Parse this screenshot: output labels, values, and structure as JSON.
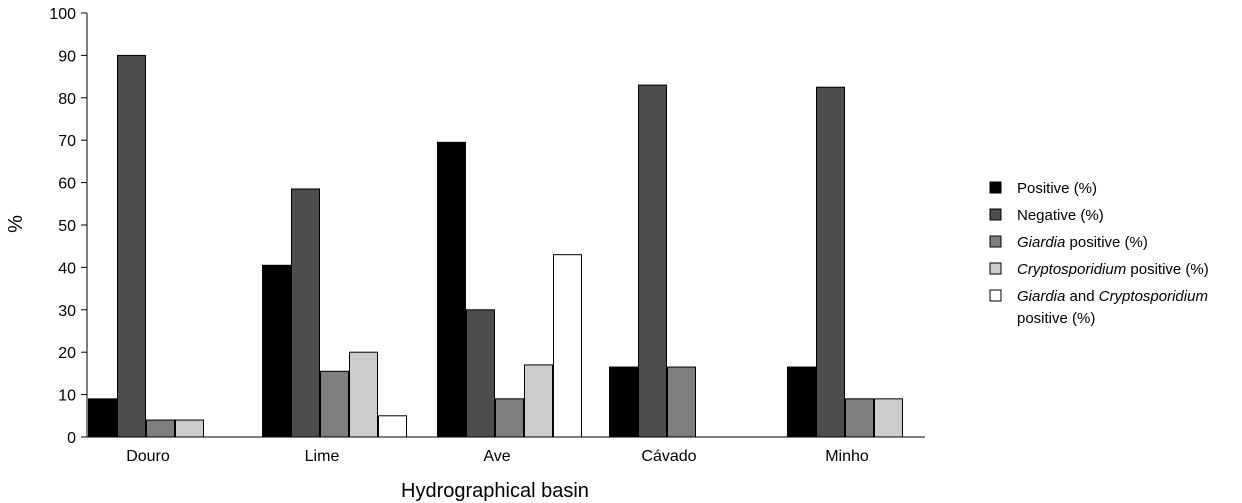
{
  "chart_data": {
    "type": "bar",
    "title": "",
    "xlabel": "Hydrographical basin",
    "ylabel": "%",
    "ylim": [
      0,
      100
    ],
    "yticks": [
      0,
      10,
      20,
      30,
      40,
      50,
      60,
      70,
      80,
      90,
      100
    ],
    "categories": [
      "Douro",
      "Lime",
      "Ave",
      "Cávado",
      "Minho"
    ],
    "legend_position": "right",
    "series": [
      {
        "name": "Positive (%)",
        "legend_parts": [
          {
            "t": "Positive (%)",
            "i": false
          }
        ],
        "color": "#000000",
        "values": [
          9,
          40.5,
          69.5,
          16.5,
          16.5
        ]
      },
      {
        "name": "Negative (%)",
        "legend_parts": [
          {
            "t": "Negative (%)",
            "i": false
          }
        ],
        "color": "#4d4d4d",
        "values": [
          90,
          58.5,
          30,
          83,
          82.5
        ]
      },
      {
        "name": "Giardia positive (%)",
        "legend_parts": [
          {
            "t": "Giardia",
            "i": true
          },
          {
            "t": " positive (%)",
            "i": false
          }
        ],
        "color": "#7f7f7f",
        "values": [
          4,
          15.5,
          9,
          16.5,
          9
        ]
      },
      {
        "name": "Cryptosporidium positive (%)",
        "legend_parts": [
          {
            "t": "Cryptosporidium",
            "i": true
          },
          {
            "t": " positive (%)",
            "i": false
          }
        ],
        "color": "#cccccc",
        "values": [
          4,
          20,
          17,
          0,
          9
        ]
      },
      {
        "name": "Giardia and Cryptosporidium positive (%)",
        "legend_parts": [
          {
            "t": "Giardia",
            "i": true
          },
          {
            "t": " and ",
            "i": false
          },
          {
            "t": "Cryptosporidium",
            "i": true
          }
        ],
        "legend_parts_line2": [
          {
            "t": "positive (%)",
            "i": false
          }
        ],
        "color": "#ffffff",
        "values": [
          0,
          5,
          43,
          0,
          0
        ]
      }
    ]
  }
}
